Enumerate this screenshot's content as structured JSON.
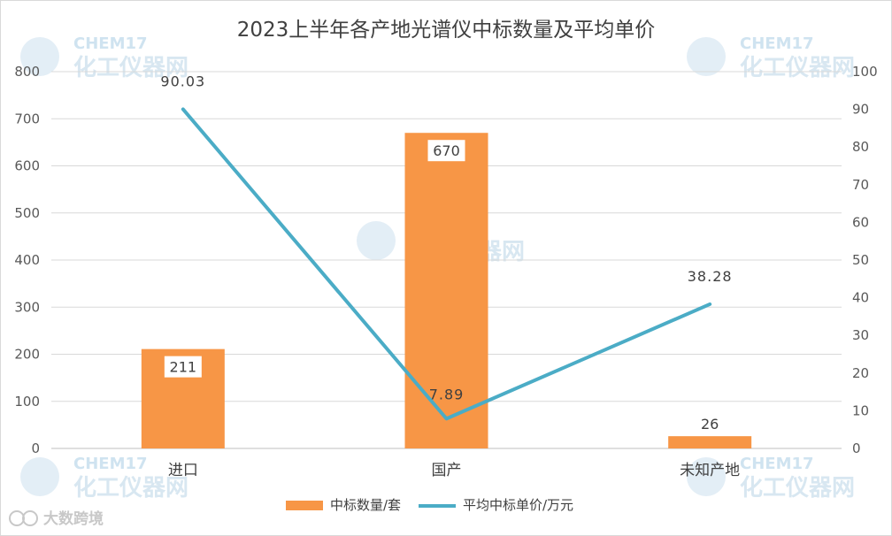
{
  "chart_data": {
    "type": "bar",
    "title": "2023上半年各产地光谱仪中标数量及平均单价",
    "categories": [
      "进口",
      "国产",
      "未知产地"
    ],
    "series": [
      {
        "name": "中标数量/套",
        "kind": "bar",
        "axis": "left",
        "color": "#f79646",
        "values": [
          211,
          670,
          26
        ],
        "labels": [
          "211",
          "670",
          "26"
        ]
      },
      {
        "name": "平均中标单价/万元",
        "kind": "line",
        "axis": "right",
        "color": "#4bacc6",
        "values": [
          90.03,
          7.89,
          38.28
        ],
        "labels": [
          "90.03",
          "7.89",
          "38.28"
        ]
      }
    ],
    "y_left": {
      "range": [
        0,
        800
      ],
      "ticks": [
        "0",
        "100",
        "200",
        "300",
        "400",
        "500",
        "600",
        "700",
        "800"
      ]
    },
    "y_right": {
      "range": [
        0,
        100
      ],
      "ticks": [
        "0",
        "10",
        "20",
        "30",
        "40",
        "50",
        "60",
        "70",
        "80",
        "90",
        "100"
      ]
    },
    "grid": true,
    "legend": "bottom-center"
  },
  "watermark": {
    "latin": "CHEM17",
    "cjk": "化工仪器网"
  },
  "corner_brand": "大数跨境"
}
